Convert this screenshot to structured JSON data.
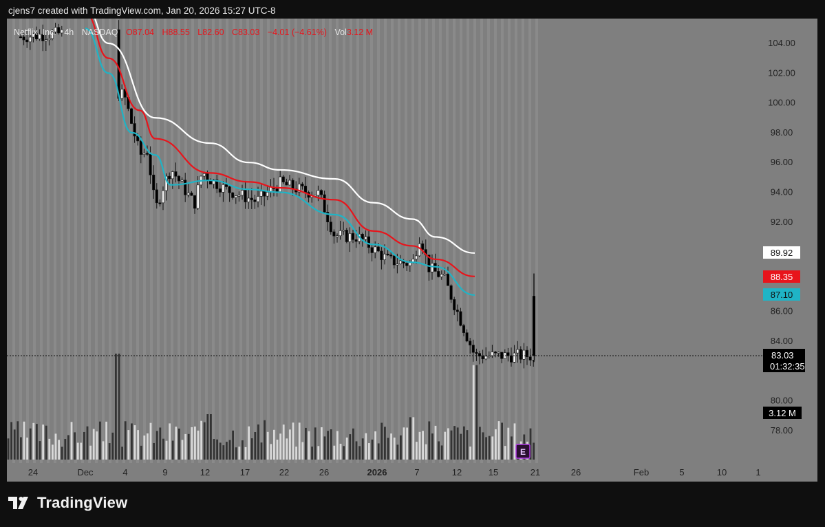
{
  "header": {
    "text": "cjens7 created with TradingView.com, Jan 20, 2026 15:27 UTC-8"
  },
  "footer": {
    "brand": "TradingView"
  },
  "legend": {
    "symbol": "Netflix, Inc.",
    "interval": "4h",
    "exchange": "NASDAQ",
    "o_label": "O",
    "o_value": "87.04",
    "h_label": "H",
    "h_value": "88.55",
    "l_label": "L",
    "l_value": "82.60",
    "c_label": "C",
    "c_value": "83.03",
    "change": "−4.01 (−4.61%)",
    "vol_label": "Vol",
    "vol_value": "3.12 M"
  },
  "price_labels": {
    "ma_white": "89.92",
    "ma_red": "88.35",
    "ma_teal": "87.10",
    "last_price": "83.03",
    "countdown": "01:32:35",
    "volume": "3.12 M"
  },
  "earnings_marker": "E",
  "colors": {
    "background": "#7f7f7f",
    "up_candle": "#f2f2f2",
    "down_candle": "#000000",
    "ma_white": "#ffffff",
    "ma_red": "#e8141b",
    "ma_teal": "#1fb4c6",
    "earnings": "#7b1fa2"
  },
  "chart_data": {
    "type": "candlestick",
    "y_axis_ticks": [
      "104.00",
      "102.00",
      "100.00",
      "98.00",
      "96.00",
      "94.00",
      "92.00",
      "86.00",
      "84.00",
      "80.00",
      "78.00"
    ],
    "x_axis_ticks": [
      "24",
      "Dec",
      "4",
      "9",
      "12",
      "17",
      "22",
      "26",
      "2026",
      "7",
      "12",
      "15",
      "21",
      "26",
      "Feb",
      "5",
      "10",
      "1"
    ],
    "ylim": [
      75.5,
      105.5
    ],
    "grid": false,
    "series": [
      {
        "name": "Price",
        "kind": "close",
        "points": [
          {
            "x": "Nov 24",
            "y": 104.5
          },
          {
            "x": "Dec 1",
            "y": 104.8
          },
          {
            "x": "Dec 4",
            "y": 101.0
          },
          {
            "x": "Dec 6",
            "y": 100.5
          },
          {
            "x": "Dec 8",
            "y": 96.5
          },
          {
            "x": "Dec 9",
            "y": 96.8
          },
          {
            "x": "Dec 10",
            "y": 92.8
          },
          {
            "x": "Dec 11",
            "y": 94.4
          },
          {
            "x": "Dec 12",
            "y": 95.6
          },
          {
            "x": "Dec 15",
            "y": 93.2
          },
          {
            "x": "Dec 16",
            "y": 95.4
          },
          {
            "x": "Dec 17",
            "y": 94.9
          },
          {
            "x": "Dec 19",
            "y": 94.2
          },
          {
            "x": "Dec 22",
            "y": 93.6
          },
          {
            "x": "Dec 23",
            "y": 93.4
          },
          {
            "x": "Dec 26",
            "y": 94.6
          },
          {
            "x": "Dec 29",
            "y": 94.1
          },
          {
            "x": "Dec 31",
            "y": 93.9
          },
          {
            "x": "Jan 2",
            "y": 91.1
          },
          {
            "x": "Jan 5",
            "y": 91.0
          },
          {
            "x": "Jan 7",
            "y": 90.2
          },
          {
            "x": "Jan 9",
            "y": 89.4
          },
          {
            "x": "Jan 12",
            "y": 89.2
          },
          {
            "x": "Jan 13",
            "y": 91.2
          },
          {
            "x": "Jan 14",
            "y": 89.0
          },
          {
            "x": "Jan 15",
            "y": 88.6
          },
          {
            "x": "Jan 16",
            "y": 88.3
          },
          {
            "x": "Jan 20",
            "y": 83.03
          }
        ]
      },
      {
        "name": "MA white",
        "points": [
          {
            "x": "Dec 1",
            "y": 106.5
          },
          {
            "x": "Dec 4",
            "y": 104.0
          },
          {
            "x": "Dec 10",
            "y": 99.0
          },
          {
            "x": "Dec 17",
            "y": 97.3
          },
          {
            "x": "Dec 22",
            "y": 96.0
          },
          {
            "x": "Dec 26",
            "y": 95.5
          },
          {
            "x": "Jan 2",
            "y": 94.9
          },
          {
            "x": "Jan 7",
            "y": 93.3
          },
          {
            "x": "Jan 12",
            "y": 92.2
          },
          {
            "x": "Jan 15",
            "y": 91.0
          },
          {
            "x": "Jan 20",
            "y": 89.92
          }
        ]
      },
      {
        "name": "MA red",
        "points": [
          {
            "x": "Dec 1",
            "y": 106.0
          },
          {
            "x": "Dec 4",
            "y": 103.0
          },
          {
            "x": "Dec 8",
            "y": 99.5
          },
          {
            "x": "Dec 10",
            "y": 97.6
          },
          {
            "x": "Dec 17",
            "y": 95.3
          },
          {
            "x": "Dec 22",
            "y": 94.7
          },
          {
            "x": "Dec 26",
            "y": 94.3
          },
          {
            "x": "Jan 2",
            "y": 93.5
          },
          {
            "x": "Jan 7",
            "y": 91.4
          },
          {
            "x": "Jan 12",
            "y": 90.4
          },
          {
            "x": "Jan 15",
            "y": 89.5
          },
          {
            "x": "Jan 20",
            "y": 88.35
          }
        ]
      },
      {
        "name": "MA teal",
        "points": [
          {
            "x": "Dec 1",
            "y": 105.0
          },
          {
            "x": "Dec 4",
            "y": 102.0
          },
          {
            "x": "Dec 7",
            "y": 98.0
          },
          {
            "x": "Dec 10",
            "y": 96.5
          },
          {
            "x": "Dec 12",
            "y": 94.5
          },
          {
            "x": "Dec 17",
            "y": 94.8
          },
          {
            "x": "Dec 22",
            "y": 94.2
          },
          {
            "x": "Dec 26",
            "y": 94.0
          },
          {
            "x": "Jan 2",
            "y": 92.5
          },
          {
            "x": "Jan 7",
            "y": 90.5
          },
          {
            "x": "Jan 12",
            "y": 89.3
          },
          {
            "x": "Jan 15",
            "y": 89.0
          },
          {
            "x": "Jan 20",
            "y": 87.1
          }
        ]
      },
      {
        "name": "Volume",
        "unit": "M",
        "points": [
          {
            "x": "Dec 5",
            "y": 3.5
          },
          {
            "x": "Dec 17",
            "y": 1.5
          },
          {
            "x": "Jan 12",
            "y": 1.4
          },
          {
            "x": "Jan 20",
            "y": 3.12
          }
        ]
      }
    ]
  }
}
